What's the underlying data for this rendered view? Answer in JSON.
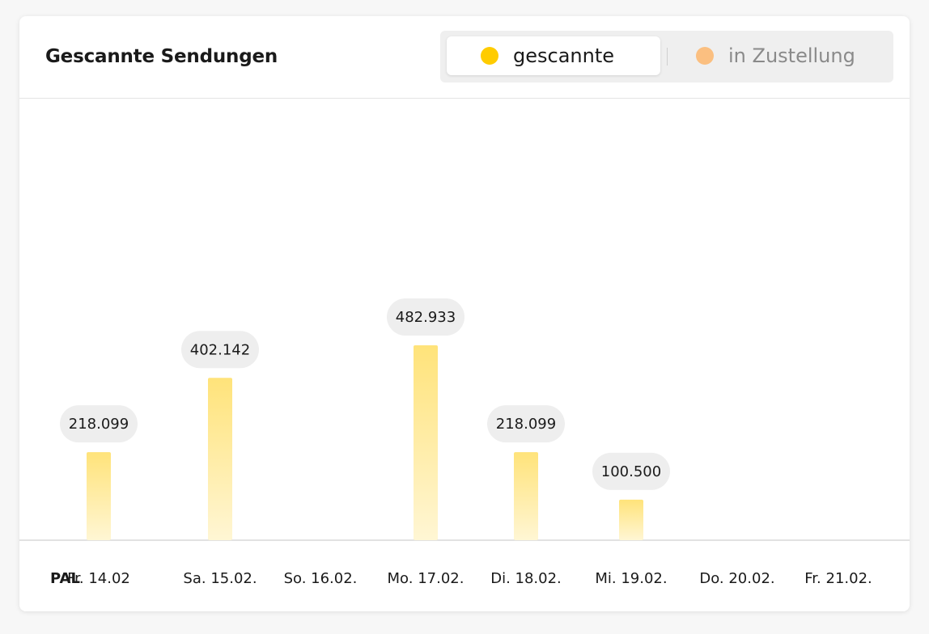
{
  "card": {
    "title": "Gescannte Sendungen"
  },
  "toggle": {
    "active_label": "gescannte",
    "inactive_label": "in Zustellung",
    "active_color": "#ffcc00",
    "inactive_color": "#fbbf80"
  },
  "chart_data": {
    "type": "bar",
    "title": "Gescannte Sendungen",
    "axis_prefix": "PAL",
    "categories": [
      "Fr. 14.02",
      "Sa. 15.02.",
      "So. 16.02.",
      "Mo. 17.02.",
      "Di. 18.02.",
      "Mi. 19.02.",
      "Do. 20.02.",
      "Fr. 21.02."
    ],
    "series": [
      {
        "name": "gescannte",
        "values": [
          218099,
          402142,
          null,
          482933,
          218099,
          100500,
          null,
          null
        ],
        "labels": [
          "218.099",
          "402.142",
          "",
          "482.933",
          "218.099",
          "100.500",
          "",
          ""
        ],
        "color": "#ffe37a"
      }
    ],
    "ylim": [
      0,
      1094000
    ],
    "grid": false,
    "legend": "top-right"
  }
}
